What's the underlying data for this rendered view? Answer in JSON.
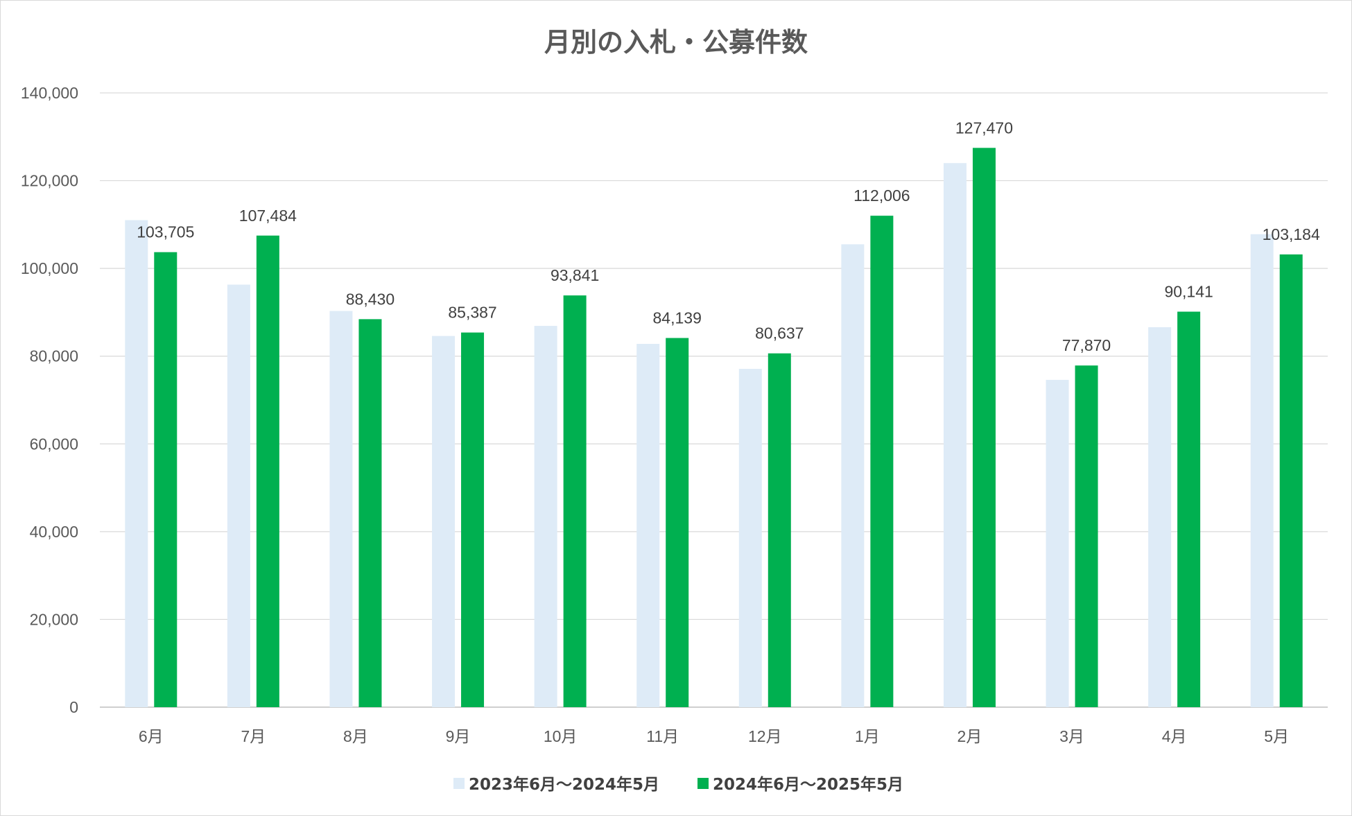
{
  "chart_data": {
    "type": "bar",
    "title": "月別の入札・公募件数",
    "categories": [
      "6月",
      "7月",
      "8月",
      "9月",
      "10月",
      "11月",
      "12月",
      "1月",
      "2月",
      "3月",
      "4月",
      "5月"
    ],
    "series": [
      {
        "name": "2023年6月～2024年5月",
        "color": "#deebf7",
        "values": [
          111000,
          96300,
          90300,
          84600,
          86900,
          82800,
          77100,
          105500,
          124000,
          74600,
          86600,
          107800
        ],
        "labeled": false
      },
      {
        "name": "2024年6月～2025年5月",
        "color": "#00b050",
        "values": [
          103705,
          107484,
          88430,
          85387,
          93841,
          84139,
          80637,
          112006,
          127470,
          77870,
          90141,
          103184
        ],
        "labels": [
          "103,705",
          "107,484",
          "88,430",
          "85,387",
          "93,841",
          "84,139",
          "80,637",
          "112,006",
          "127,470",
          "77,870",
          "90,141",
          "103,184"
        ],
        "labeled": true
      }
    ],
    "ylim": [
      0,
      140000
    ],
    "yticks": [
      0,
      20000,
      40000,
      60000,
      80000,
      100000,
      120000,
      140000
    ],
    "ytick_labels": [
      "0",
      "20,000",
      "40,000",
      "60,000",
      "80,000",
      "100,000",
      "120,000",
      "140,000"
    ],
    "grid": true,
    "legend_position": "bottom",
    "xlabel": "",
    "ylabel": ""
  }
}
